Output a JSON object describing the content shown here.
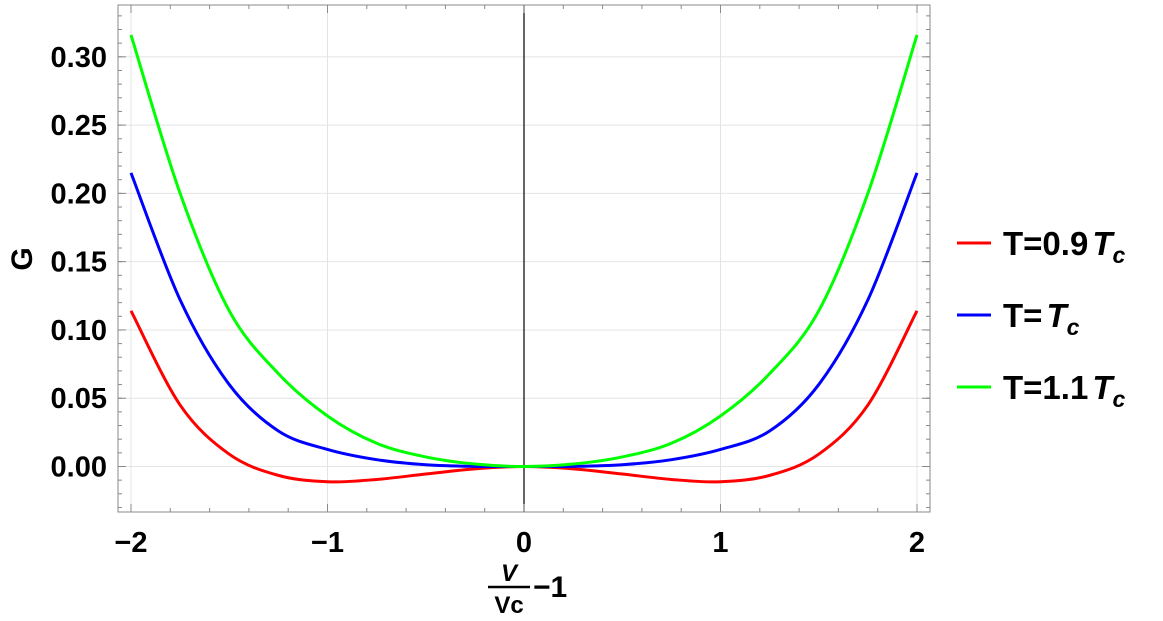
{
  "chart_data": {
    "type": "line",
    "xlabel": {
      "numerator": "V",
      "denominator": "Vc",
      "suffix": "−1"
    },
    "ylabel": "G",
    "xlim": [
      -2.0,
      2.0
    ],
    "ylim": [
      -0.032,
      0.335
    ],
    "x_ticks": [
      -2,
      -1,
      0,
      1,
      2
    ],
    "x_tick_labels": [
      "−2",
      "−1",
      "0",
      "1",
      "2"
    ],
    "y_ticks": [
      0.0,
      0.05,
      0.1,
      0.15,
      0.2,
      0.25,
      0.3
    ],
    "y_tick_labels": [
      "0.00",
      "0.05",
      "0.10",
      "0.15",
      "0.20",
      "0.25",
      "0.30"
    ],
    "grid": true,
    "legend_position": "right",
    "series": [
      {
        "name": "T=0.9Tc",
        "legend": {
          "prefix": "T=0.9",
          "symbol": "T",
          "subscript": "c"
        },
        "color": "#ff0000",
        "x": [
          -2.0,
          -1.75,
          -1.5,
          -1.25,
          -1.0,
          -0.75,
          -0.5,
          -0.25,
          0.0,
          0.25,
          0.5,
          0.75,
          1.0,
          1.25,
          1.5,
          1.75,
          2.0
        ],
        "y": [
          0.114,
          0.045,
          0.009,
          -0.0065,
          -0.0112,
          -0.0095,
          -0.0055,
          -0.0017,
          0.0,
          -0.0017,
          -0.0055,
          -0.0095,
          -0.0112,
          -0.0065,
          0.009,
          0.045,
          0.114
        ]
      },
      {
        "name": "T=Tc",
        "legend": {
          "prefix": "T=",
          "symbol": "T",
          "subscript": "c"
        },
        "color": "#0000ff",
        "x": [
          -2.0,
          -1.75,
          -1.5,
          -1.25,
          -1.0,
          -0.75,
          -0.5,
          -0.25,
          0.0,
          0.25,
          0.5,
          0.75,
          1.0,
          1.25,
          1.5,
          1.75,
          2.0
        ],
        "y": [
          0.215,
          0.122,
          0.06,
          0.026,
          0.0125,
          0.005,
          0.0013,
          0.0001,
          0.0,
          0.0001,
          0.0013,
          0.005,
          0.0125,
          0.026,
          0.06,
          0.122,
          0.215
        ]
      },
      {
        "name": "T=1.1Tc",
        "legend": {
          "prefix": "T=1.1",
          "symbol": "T",
          "subscript": "c"
        },
        "color": "#00ff00",
        "x": [
          -2.0,
          -1.75,
          -1.5,
          -1.25,
          -1.0,
          -0.75,
          -0.5,
          -0.25,
          0.0,
          0.25,
          0.5,
          0.75,
          1.0,
          1.25,
          1.5,
          1.75,
          2.0
        ],
        "y": [
          0.316,
          0.2,
          0.114,
          0.068,
          0.037,
          0.017,
          0.007,
          0.0018,
          0.0,
          0.0018,
          0.007,
          0.017,
          0.037,
          0.068,
          0.114,
          0.2,
          0.316
        ]
      }
    ]
  }
}
